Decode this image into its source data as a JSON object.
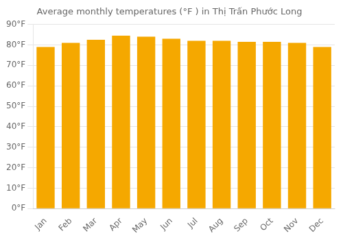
{
  "chart_data": {
    "type": "bar",
    "title": "Average monthly temperatures (°F ) in Thị Trấn Phước Long",
    "categories": [
      "Jan",
      "Feb",
      "Mar",
      "Apr",
      "May",
      "Jun",
      "Jul",
      "Aug",
      "Sep",
      "Oct",
      "Nov",
      "Dec"
    ],
    "values": [
      79,
      81,
      82.5,
      84.5,
      84,
      83,
      82,
      82,
      81.5,
      81.5,
      81,
      79
    ],
    "color": "#F5A800",
    "ylim": [
      0,
      90
    ],
    "yticks": [
      {
        "value": 0,
        "label": "0°F"
      },
      {
        "value": 10,
        "label": "10°F"
      },
      {
        "value": 20,
        "label": "20°F"
      },
      {
        "value": 30,
        "label": "30°F"
      },
      {
        "value": 40,
        "label": "40°F"
      },
      {
        "value": 50,
        "label": "50°F"
      },
      {
        "value": 60,
        "label": "60°F"
      },
      {
        "value": 70,
        "label": "70°F"
      },
      {
        "value": 80,
        "label": "80°F"
      },
      {
        "value": 90,
        "label": "90°F"
      }
    ],
    "grid": true
  }
}
